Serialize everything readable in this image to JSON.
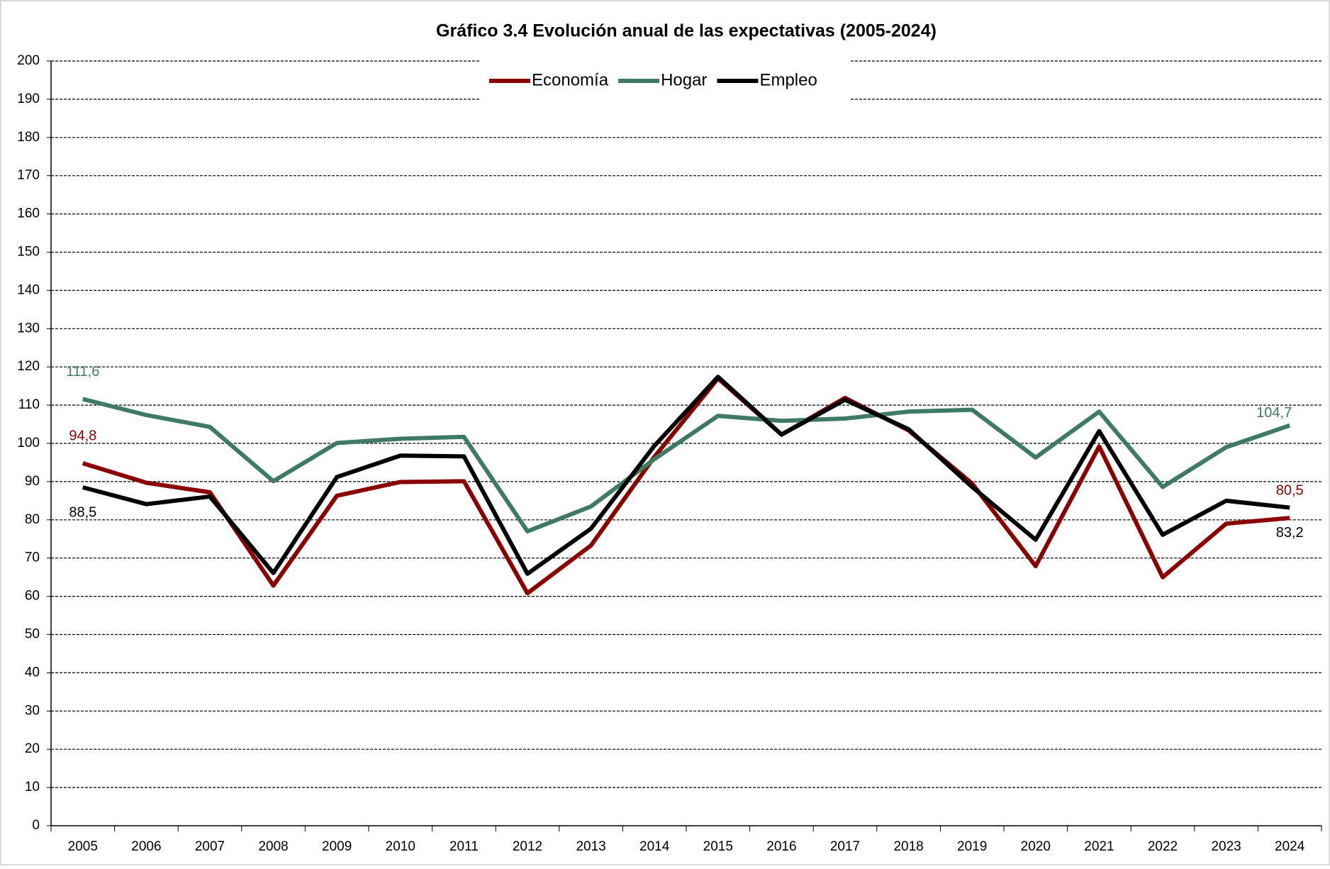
{
  "chart_data": {
    "type": "line",
    "title": "Gráfico 3.4 Evolución anual de las expectativas (2005-2024)",
    "categories": [
      "2005",
      "2006",
      "2007",
      "2008",
      "2009",
      "2010",
      "2011",
      "2012",
      "2013",
      "2014",
      "2015",
      "2016",
      "2017",
      "2018",
      "2019",
      "2020",
      "2021",
      "2022",
      "2023",
      "2024"
    ],
    "series": [
      {
        "name": "Economía",
        "color": "#8b0000",
        "values": [
          94.8,
          89.7,
          87.2,
          62.8,
          86.3,
          89.9,
          90.1,
          60.8,
          73.3,
          96.5,
          117.0,
          102.3,
          111.9,
          103.4,
          89.5,
          67.9,
          99.2,
          65.0,
          79.0,
          80.5
        ],
        "value_labels": [
          "94,8",
          null,
          null,
          null,
          null,
          null,
          null,
          null,
          null,
          null,
          null,
          null,
          null,
          null,
          null,
          null,
          null,
          null,
          null,
          "80,5"
        ]
      },
      {
        "name": "Hogar",
        "color": "#3f7a63",
        "values": [
          111.6,
          107.4,
          104.3,
          90.1,
          100.1,
          101.2,
          101.7,
          77.0,
          83.5,
          95.9,
          107.2,
          105.9,
          106.5,
          108.3,
          108.8,
          96.3,
          108.3,
          88.6,
          99.0,
          104.7
        ],
        "value_labels": [
          "111,6",
          null,
          null,
          null,
          null,
          null,
          null,
          null,
          null,
          null,
          null,
          null,
          null,
          null,
          null,
          null,
          null,
          null,
          null,
          "104,7"
        ]
      },
      {
        "name": "Empleo",
        "color": "#000000",
        "values": [
          88.5,
          84.1,
          86.1,
          66.1,
          91.2,
          96.8,
          96.6,
          65.9,
          77.7,
          99.4,
          117.4,
          102.3,
          111.4,
          103.7,
          88.6,
          74.8,
          103.2,
          76.1,
          85.0,
          83.2
        ],
        "value_labels": [
          "88,5",
          null,
          null,
          null,
          null,
          null,
          null,
          null,
          null,
          null,
          null,
          null,
          null,
          null,
          null,
          null,
          null,
          null,
          null,
          "83,2"
        ]
      }
    ],
    "ylim": [
      0,
      200
    ],
    "yticks": [
      0,
      10,
      20,
      30,
      40,
      50,
      60,
      70,
      80,
      90,
      100,
      110,
      120,
      130,
      140,
      150,
      160,
      170,
      180,
      190,
      200
    ],
    "grid": true,
    "legend": "top"
  }
}
